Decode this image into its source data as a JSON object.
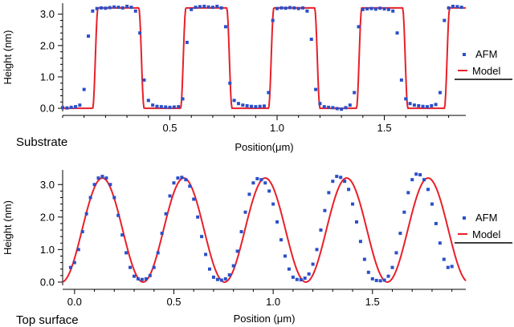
{
  "chart_data": [
    {
      "type": "scatter",
      "panel_label": "Substrate",
      "xlabel": "Position(μm)",
      "ylabel": "Height (nm)",
      "xlim": [
        0.0,
        1.88
      ],
      "ylim": [
        -0.1,
        3.35
      ],
      "xticks": [
        0.5,
        1.0,
        1.5
      ],
      "xtick_labels": [
        "0.5",
        "1.0",
        "1.5"
      ],
      "yticks": [
        0.0,
        1.0,
        2.0,
        3.0
      ],
      "ytick_labels": [
        "0.0",
        "1.0",
        "2.0",
        "3.0"
      ],
      "legend": {
        "position": "right",
        "entries": [
          "AFM",
          "Model"
        ]
      },
      "series": [
        {
          "name": "AFM",
          "style": "markers",
          "color": "#2a4fc9",
          "x": [
            0.0,
            0.02,
            0.04,
            0.06,
            0.08,
            0.1,
            0.12,
            0.14,
            0.16,
            0.18,
            0.2,
            0.22,
            0.24,
            0.26,
            0.28,
            0.3,
            0.32,
            0.34,
            0.36,
            0.38,
            0.4,
            0.42,
            0.44,
            0.46,
            0.48,
            0.5,
            0.52,
            0.54,
            0.56,
            0.58,
            0.6,
            0.62,
            0.64,
            0.66,
            0.68,
            0.7,
            0.72,
            0.74,
            0.76,
            0.78,
            0.8,
            0.82,
            0.84,
            0.86,
            0.88,
            0.9,
            0.92,
            0.94,
            0.96,
            0.98,
            1.0,
            1.02,
            1.04,
            1.06,
            1.08,
            1.1,
            1.12,
            1.14,
            1.16,
            1.18,
            1.2,
            1.22,
            1.24,
            1.26,
            1.28,
            1.3,
            1.32,
            1.34,
            1.36,
            1.38,
            1.4,
            1.42,
            1.44,
            1.46,
            1.48,
            1.5,
            1.52,
            1.54,
            1.56,
            1.58,
            1.6,
            1.62,
            1.64,
            1.66,
            1.68,
            1.7,
            1.72,
            1.74,
            1.76,
            1.78,
            1.8,
            1.82,
            1.84,
            1.86
          ],
          "y": [
            0.02,
            0.01,
            0.03,
            0.05,
            0.1,
            0.6,
            2.3,
            3.1,
            3.18,
            3.2,
            3.19,
            3.21,
            3.23,
            3.22,
            3.2,
            3.25,
            3.22,
            3.1,
            2.4,
            0.9,
            0.25,
            0.1,
            0.06,
            0.05,
            0.04,
            0.03,
            0.04,
            0.05,
            0.3,
            2.1,
            3.15,
            3.22,
            3.24,
            3.25,
            3.23,
            3.22,
            3.25,
            3.2,
            2.6,
            0.8,
            0.25,
            0.15,
            0.1,
            0.08,
            0.06,
            0.05,
            0.06,
            0.07,
            0.5,
            2.8,
            3.18,
            3.2,
            3.19,
            3.21,
            3.2,
            3.18,
            3.2,
            3.1,
            2.2,
            0.6,
            0.15,
            0.05,
            0.03,
            0.02,
            -0.01,
            -0.03,
            0.02,
            0.1,
            0.5,
            2.6,
            3.15,
            3.17,
            3.18,
            3.16,
            3.19,
            3.17,
            3.15,
            3.1,
            2.4,
            0.9,
            0.3,
            0.15,
            0.1,
            0.08,
            0.06,
            0.05,
            0.08,
            0.12,
            0.5,
            2.8,
            3.2,
            3.25,
            3.24,
            3.22
          ]
        },
        {
          "name": "Model",
          "style": "line",
          "color": "#e8202a",
          "type": "periodic-trapezoid",
          "period": 0.41,
          "rise_start": 0.14,
          "top_start": 0.165,
          "fall_start": 0.355,
          "fall_end": 0.38,
          "low": 0.0,
          "high": 3.2
        }
      ]
    },
    {
      "type": "scatter",
      "panel_label": "Top surface",
      "xlabel": "Position (μm)",
      "ylabel": "Height (nm)",
      "xlim": [
        -0.06,
        1.97
      ],
      "ylim": [
        -0.1,
        3.45
      ],
      "xticks": [
        0.0,
        0.5,
        1.0,
        1.5
      ],
      "xtick_labels": [
        "0.0",
        "0.5",
        "1.0",
        "1.5"
      ],
      "yticks": [
        0.0,
        1.0,
        2.0,
        3.0
      ],
      "ytick_labels": [
        "0.0",
        "1.0",
        "2.0",
        "3.0"
      ],
      "legend": {
        "position": "right",
        "entries": [
          "AFM",
          "Model"
        ]
      },
      "series": [
        {
          "name": "AFM",
          "style": "markers",
          "color": "#2a4fc9",
          "x": [
            -0.02,
            0.0,
            0.02,
            0.04,
            0.06,
            0.08,
            0.1,
            0.12,
            0.14,
            0.16,
            0.18,
            0.2,
            0.22,
            0.24,
            0.26,
            0.28,
            0.3,
            0.32,
            0.34,
            0.36,
            0.38,
            0.4,
            0.42,
            0.44,
            0.46,
            0.48,
            0.5,
            0.52,
            0.54,
            0.56,
            0.58,
            0.6,
            0.62,
            0.64,
            0.66,
            0.68,
            0.7,
            0.72,
            0.74,
            0.76,
            0.78,
            0.8,
            0.82,
            0.84,
            0.86,
            0.88,
            0.9,
            0.92,
            0.94,
            0.96,
            0.98,
            1.0,
            1.02,
            1.04,
            1.06,
            1.08,
            1.1,
            1.12,
            1.14,
            1.16,
            1.18,
            1.2,
            1.22,
            1.24,
            1.26,
            1.28,
            1.3,
            1.32,
            1.34,
            1.36,
            1.38,
            1.4,
            1.42,
            1.44,
            1.46,
            1.48,
            1.5,
            1.52,
            1.54,
            1.56,
            1.58,
            1.6,
            1.62,
            1.64,
            1.66,
            1.68,
            1.7,
            1.72,
            1.74,
            1.76,
            1.78,
            1.8,
            1.82,
            1.84,
            1.86,
            1.88,
            1.9
          ],
          "y": [
            0.45,
            0.6,
            1.0,
            1.55,
            2.1,
            2.6,
            3.0,
            3.2,
            3.25,
            3.2,
            3.0,
            2.6,
            2.05,
            1.45,
            0.9,
            0.45,
            0.18,
            0.1,
            0.08,
            0.1,
            0.2,
            0.45,
            0.9,
            1.5,
            2.1,
            2.65,
            3.05,
            3.2,
            3.22,
            3.15,
            2.95,
            2.55,
            2.0,
            1.4,
            0.85,
            0.4,
            0.15,
            0.08,
            0.06,
            0.1,
            0.22,
            0.5,
            0.95,
            1.55,
            2.15,
            2.7,
            3.05,
            3.18,
            3.15,
            3.05,
            2.8,
            2.4,
            1.85,
            1.3,
            0.8,
            0.4,
            0.15,
            0.08,
            0.07,
            0.12,
            0.25,
            0.55,
            1.0,
            1.6,
            2.2,
            2.75,
            3.1,
            3.25,
            3.22,
            3.1,
            2.85,
            2.4,
            1.85,
            1.25,
            0.7,
            0.3,
            0.1,
            0.05,
            0.04,
            0.06,
            0.18,
            0.45,
            0.9,
            1.5,
            2.15,
            2.75,
            3.15,
            3.32,
            3.3,
            3.15,
            2.85,
            2.4,
            1.8,
            1.2,
            0.7,
            0.45,
            0.48
          ]
        },
        {
          "name": "Model",
          "style": "line",
          "color": "#e8202a",
          "type": "cosine",
          "period": 0.41,
          "peak_x": 0.14,
          "amplitude": 1.6,
          "offset": 1.6
        }
      ]
    }
  ]
}
